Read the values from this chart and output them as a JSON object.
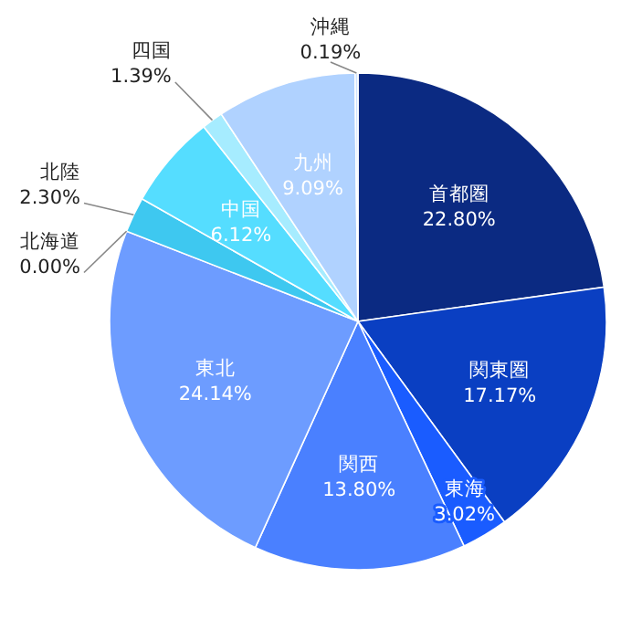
{
  "chart_data": {
    "type": "pie",
    "categories": [
      "首都圏",
      "関東圏",
      "東海",
      "関西",
      "東北",
      "北海道",
      "北陸",
      "中国",
      "四国",
      "九州",
      "沖縄"
    ],
    "values": [
      22.8,
      17.17,
      3.02,
      13.8,
      24.14,
      0.0,
      2.3,
      6.12,
      1.39,
      9.09,
      0.19
    ],
    "value_labels": [
      "22.80%",
      "17.17%",
      "3.02%",
      "13.80%",
      "24.14%",
      "0.00%",
      "2.30%",
      "6.12%",
      "1.39%",
      "9.09%",
      "0.19%"
    ],
    "colors": [
      "#0b2a82",
      "#0a3fc2",
      "#1a5cff",
      "#4a80ff",
      "#6d9cff",
      "#2fb8ee",
      "#3ec8f0",
      "#55ddff",
      "#a6ecff",
      "#b0d2ff",
      "#cfe3ff"
    ]
  }
}
